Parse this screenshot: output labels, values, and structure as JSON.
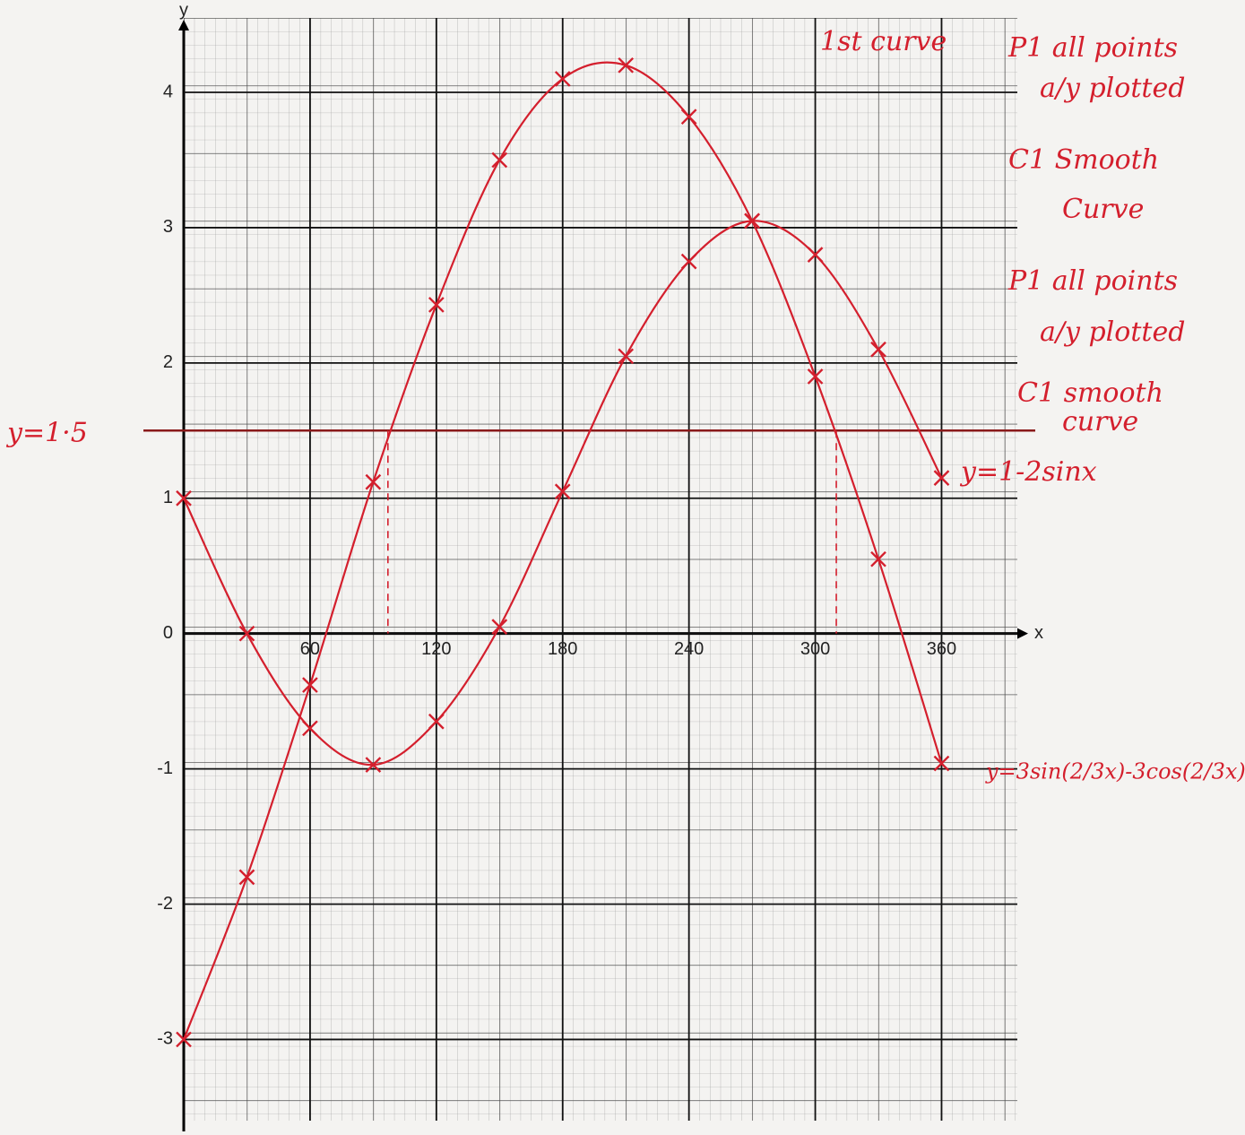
{
  "chart_data": {
    "type": "line",
    "x": [
      0,
      30,
      60,
      90,
      120,
      150,
      180,
      210,
      240,
      270,
      300,
      330,
      360
    ],
    "series": [
      {
        "name": "y=1-2sinx",
        "color": "#d41f2d",
        "values": [
          1,
          0,
          -0.7,
          -0.97,
          -0.65,
          0.05,
          1.05,
          2.05,
          2.75,
          3.05,
          2.8,
          2.1,
          1.15
        ]
      },
      {
        "name": "y=3sin(2/3x)-3cos(2/3x)",
        "color": "#d41f2d",
        "values": [
          -3,
          -1.8,
          -0.38,
          1.12,
          2.43,
          3.5,
          4.1,
          4.2,
          3.82,
          3.05,
          1.9,
          0.55,
          -0.96
        ]
      }
    ],
    "hline": {
      "value": 1.5,
      "label": "y=1·5",
      "color": "#8a1a1a"
    },
    "solution_x": [
      97,
      310
    ],
    "xlabel": "x",
    "ylabel": "y",
    "xlim": [
      0,
      396
    ],
    "ylim": [
      -3.6,
      4.55
    ],
    "xticks": [
      60,
      120,
      180,
      240,
      300,
      360
    ],
    "yticks": [
      -3,
      -2,
      -1,
      0,
      1,
      2,
      3,
      4
    ],
    "annotations": [
      "1st curve",
      "P1 all points",
      "a/y plotted",
      "C1 Smooth",
      "Curve",
      "P1 all points",
      "a/y plotted",
      "C1 smooth",
      "curve"
    ],
    "grid": true
  }
}
